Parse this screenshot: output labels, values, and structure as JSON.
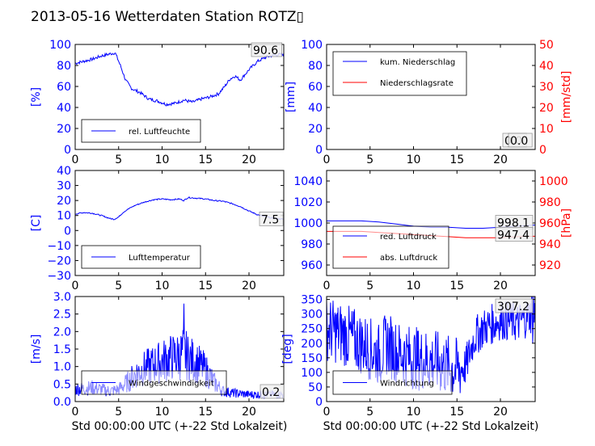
{
  "title": "2013-05-16 Wetterdaten Station ROTZ▯",
  "colors": {
    "blue": "#0000ff",
    "red": "#ff0000",
    "black": "#000000"
  },
  "chart_data": [
    {
      "id": "humidity",
      "type": "line",
      "xlim": [
        0,
        24
      ],
      "xticks": [
        0,
        5,
        10,
        15,
        20
      ],
      "ylabel": "[%]",
      "ylim": [
        0,
        100
      ],
      "yticks": [
        0,
        20,
        40,
        60,
        80,
        100
      ],
      "series": [
        {
          "name": "rel. Luftfeuchte",
          "color": "#0000ff",
          "x": [
            0,
            1,
            2,
            3,
            4,
            4.6,
            5.2,
            5.8,
            6.5,
            7.5,
            8.5,
            9.5,
            10.5,
            11.5,
            12.5,
            13.5,
            14.5,
            15.5,
            16.5,
            17.2,
            17.8,
            18.4,
            19,
            20,
            21,
            22,
            23,
            24
          ],
          "y": [
            82,
            84,
            86,
            89,
            91,
            92,
            80,
            66,
            58,
            54,
            48,
            46,
            43,
            44,
            47,
            45,
            48,
            50,
            53,
            60,
            67,
            70,
            66,
            76,
            84,
            88,
            90,
            90.6
          ]
        }
      ],
      "annotations": [
        "90.6"
      ]
    },
    {
      "id": "precip",
      "type": "line",
      "xlim": [
        0,
        24
      ],
      "xticks": [
        0,
        5,
        10,
        15,
        20
      ],
      "ylabel": "[mm]",
      "ylim": [
        0,
        100
      ],
      "yticks": [
        0,
        20,
        40,
        60,
        80,
        100
      ],
      "y2label": "[mm/std]",
      "y2lim": [
        0,
        50
      ],
      "y2ticks": [
        0,
        10,
        20,
        30,
        40,
        50
      ],
      "series": [
        {
          "name": "kum. Niederschlag",
          "color": "#0000ff",
          "x": [
            0,
            24
          ],
          "y": [
            0,
            0
          ]
        },
        {
          "name": "Niederschlagsrate",
          "color": "#ff0000",
          "x": [
            0,
            24
          ],
          "y": [
            0,
            0
          ]
        }
      ],
      "annotations": [
        "0.0",
        "0.0"
      ]
    },
    {
      "id": "temperature",
      "type": "line",
      "xlim": [
        0,
        24
      ],
      "xticks": [
        0,
        5,
        10,
        15,
        20
      ],
      "ylabel": "[C]",
      "ylim": [
        -30,
        40
      ],
      "yticks": [
        -30,
        -20,
        -10,
        0,
        10,
        20,
        30,
        40
      ],
      "series": [
        {
          "name": "Lufttemperatur",
          "color": "#0000ff",
          "x": [
            0,
            1,
            2,
            3,
            4,
            4.5,
            5,
            5.5,
            6,
            7,
            8,
            9,
            10,
            11,
            12,
            12.5,
            13,
            14,
            15,
            16,
            17,
            18,
            19,
            20,
            21,
            22,
            23,
            24
          ],
          "y": [
            11,
            12,
            11.5,
            10,
            8,
            7.5,
            9,
            12,
            14,
            17,
            19,
            20.5,
            21,
            20.5,
            21,
            20,
            22,
            21.5,
            21,
            20,
            19.5,
            18,
            16,
            13,
            10.5,
            9,
            8,
            7.5
          ]
        }
      ],
      "annotations": [
        "7.5"
      ]
    },
    {
      "id": "pressure",
      "type": "line",
      "xlim": [
        0,
        24
      ],
      "xticks": [
        0,
        5,
        10,
        15,
        20
      ],
      "ylim": [
        950,
        1050
      ],
      "yticks": [
        960,
        980,
        1000,
        1020,
        1040
      ],
      "y2label": "[hPa]",
      "y2lim": [
        910,
        1010
      ],
      "y2ticks": [
        920,
        940,
        960,
        980,
        1000
      ],
      "series": [
        {
          "name": "red. Luftdruck",
          "color": "#0000ff",
          "x": [
            0,
            2,
            4,
            6,
            8,
            10,
            12,
            14,
            16,
            18,
            20,
            22,
            24
          ],
          "y": [
            1002,
            1002,
            1002,
            1001,
            999,
            997,
            996,
            996,
            995,
            995,
            996,
            997,
            998.1
          ]
        },
        {
          "name": "abs. Luftdruck",
          "color": "#ff0000",
          "x": [
            0,
            2,
            4,
            6,
            8,
            10,
            12,
            14,
            16,
            18,
            20,
            22,
            24
          ],
          "y": [
            952,
            952,
            952,
            951,
            950,
            949,
            948,
            947,
            946,
            946,
            946,
            947,
            947.4
          ]
        }
      ],
      "annotations": [
        "998.1",
        "947.4"
      ]
    },
    {
      "id": "windspeed",
      "type": "line",
      "xlim": [
        0,
        24
      ],
      "xticks": [
        0,
        5,
        10,
        15,
        20
      ],
      "xlabel": "Std 00:00:00 UTC (+-22 Std Lokalzeit)",
      "ylabel": "[m/s]",
      "ylim": [
        0,
        3
      ],
      "yticks": [
        0.0,
        0.5,
        1.0,
        1.5,
        2.0,
        2.5,
        3.0
      ],
      "series": [
        {
          "name": "Windgeschwindigkeit",
          "color": "#0000ff",
          "x": [
            0,
            2,
            4,
            5,
            6,
            7,
            8,
            9,
            10,
            11,
            12,
            12.5,
            13,
            14,
            15,
            16,
            17,
            18,
            20,
            22,
            24
          ],
          "y": [
            0.35,
            0.4,
            0.3,
            0.35,
            0.55,
            0.8,
            0.95,
            1.05,
            1.15,
            1.25,
            1.3,
            1.4,
            1.25,
            1.1,
            0.9,
            0.55,
            0.3,
            0.25,
            0.2,
            0.2,
            0.2
          ],
          "peak": 2.8,
          "peak_x": 12.5
        }
      ],
      "annotations": [
        "0.2"
      ]
    },
    {
      "id": "winddir",
      "type": "line",
      "xlim": [
        0,
        24
      ],
      "xticks": [
        0,
        5,
        10,
        15,
        20
      ],
      "xlabel": "Std 00:00:00 UTC (+-22 Std Lokalzeit)",
      "ylabel": "[deg]",
      "ylim": [
        0,
        360
      ],
      "yticks": [
        0,
        50,
        100,
        150,
        200,
        250,
        300,
        350
      ],
      "series": [
        {
          "name": "Windrichtung",
          "color": "#0000ff",
          "x": [
            0,
            2,
            4,
            5,
            6,
            7,
            8,
            10,
            12,
            14,
            15,
            16,
            17,
            18,
            20,
            22,
            24
          ],
          "y": [
            250,
            230,
            200,
            180,
            160,
            200,
            170,
            150,
            140,
            120,
            110,
            120,
            220,
            250,
            280,
            270,
            307.2
          ]
        }
      ],
      "annotations": [
        "307.2"
      ]
    }
  ]
}
